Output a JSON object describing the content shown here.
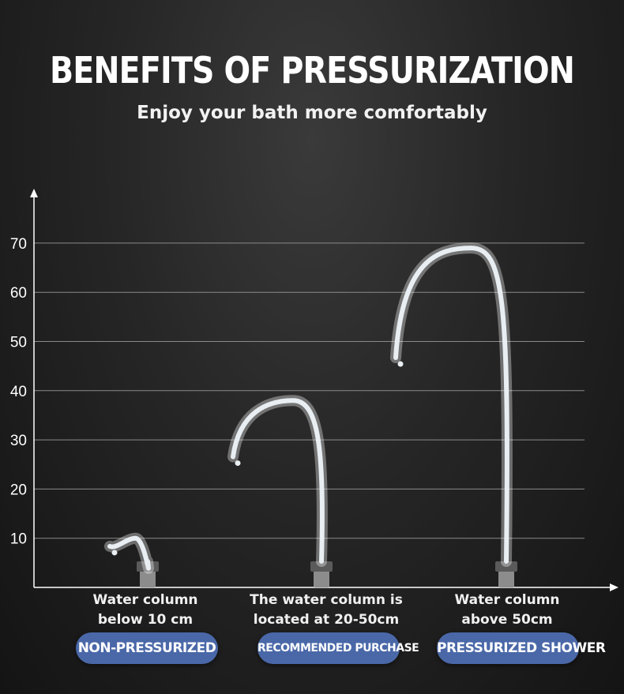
{
  "title": "BENEFITS OF PRESSURIZATION",
  "subtitle": "Enjoy your bath more comfortably",
  "colors": {
    "badge": "#4a68a8",
    "grid": "#8a8a8a",
    "axis": "#ffffff",
    "water": "#e8eef2",
    "nozzle": "#8c8c8c"
  },
  "chart_data": {
    "type": "bar",
    "ylim": [
      0,
      70
    ],
    "y_ticks": [
      "10",
      "20",
      "30",
      "40",
      "50",
      "60",
      "70"
    ],
    "grid": true,
    "categories": [
      {
        "caption_line1": "Water column",
        "caption_line2": "below 10 cm",
        "badge": "NON-PRESSURIZED",
        "peak": 10
      },
      {
        "caption_line1": "The water column is",
        "caption_line2": "located at 20-50cm",
        "badge": "RECOMMENDED PURCHASE",
        "peak": 38
      },
      {
        "caption_line1": "Water column",
        "caption_line2": "above 50cm",
        "badge": "PRESSURIZED SHOWER",
        "peak": 69
      }
    ]
  }
}
